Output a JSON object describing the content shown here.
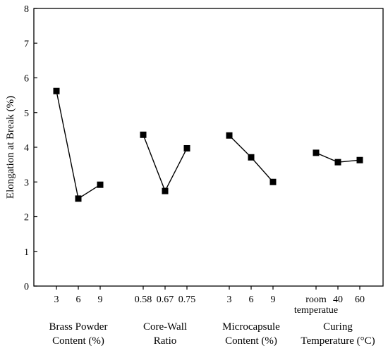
{
  "chart_data": {
    "type": "scatter",
    "ylabel": "Elongation at Break (%)",
    "ylim": [
      0,
      8
    ],
    "yticks": [
      "0",
      "1",
      "2",
      "3",
      "4",
      "5",
      "6",
      "7",
      "8"
    ],
    "grid": false,
    "legend": "none",
    "marker_color": "#000000",
    "line_color": "#000000",
    "groups": [
      {
        "label_lines": [
          "Brass Powder",
          "Content (%)"
        ],
        "levels": [
          "3",
          "6",
          "9"
        ],
        "values": [
          5.62,
          2.52,
          2.92
        ]
      },
      {
        "label_lines": [
          "Core-Wall",
          "Ratio"
        ],
        "levels": [
          "0.58",
          "0.67",
          "0.75"
        ],
        "values": [
          4.36,
          2.74,
          3.97
        ]
      },
      {
        "label_lines": [
          "Microcapsule",
          "Content (%)"
        ],
        "levels": [
          "3",
          "6",
          "9"
        ],
        "values": [
          4.34,
          3.71,
          3.0
        ]
      },
      {
        "label_lines": [
          "Curing",
          "Temperature (°C)"
        ],
        "levels": [
          "room temperatue",
          "40",
          "60"
        ],
        "values": [
          3.84,
          3.57,
          3.63
        ]
      }
    ]
  }
}
